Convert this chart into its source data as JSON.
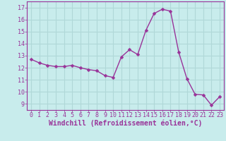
{
  "x": [
    0,
    1,
    2,
    3,
    4,
    5,
    6,
    7,
    8,
    9,
    10,
    11,
    12,
    13,
    14,
    15,
    16,
    17,
    18,
    19,
    20,
    21,
    22,
    23
  ],
  "y": [
    12.7,
    12.4,
    12.2,
    12.1,
    12.1,
    12.2,
    12.0,
    11.85,
    11.75,
    11.35,
    11.2,
    12.9,
    13.5,
    13.1,
    15.1,
    16.5,
    16.85,
    16.7,
    13.3,
    11.1,
    9.8,
    9.75,
    8.9,
    9.6
  ],
  "line_color": "#993399",
  "marker_color": "#993399",
  "bg_color": "#c8ecec",
  "grid_color": "#b0d8d8",
  "xlabel": "Windchill (Refroidissement éolien,°C)",
  "xlabel_color": "#993399",
  "tick_color": "#993399",
  "ylim": [
    8.5,
    17.5
  ],
  "xlim": [
    -0.5,
    23.5
  ],
  "yticks": [
    9,
    10,
    11,
    12,
    13,
    14,
    15,
    16,
    17
  ],
  "xticks": [
    0,
    1,
    2,
    3,
    4,
    5,
    6,
    7,
    8,
    9,
    10,
    11,
    12,
    13,
    14,
    15,
    16,
    17,
    18,
    19,
    20,
    21,
    22,
    23
  ],
  "marker_size": 2.5,
  "line_width": 1.0,
  "font_size": 6.0,
  "xlabel_font_size": 7.0
}
